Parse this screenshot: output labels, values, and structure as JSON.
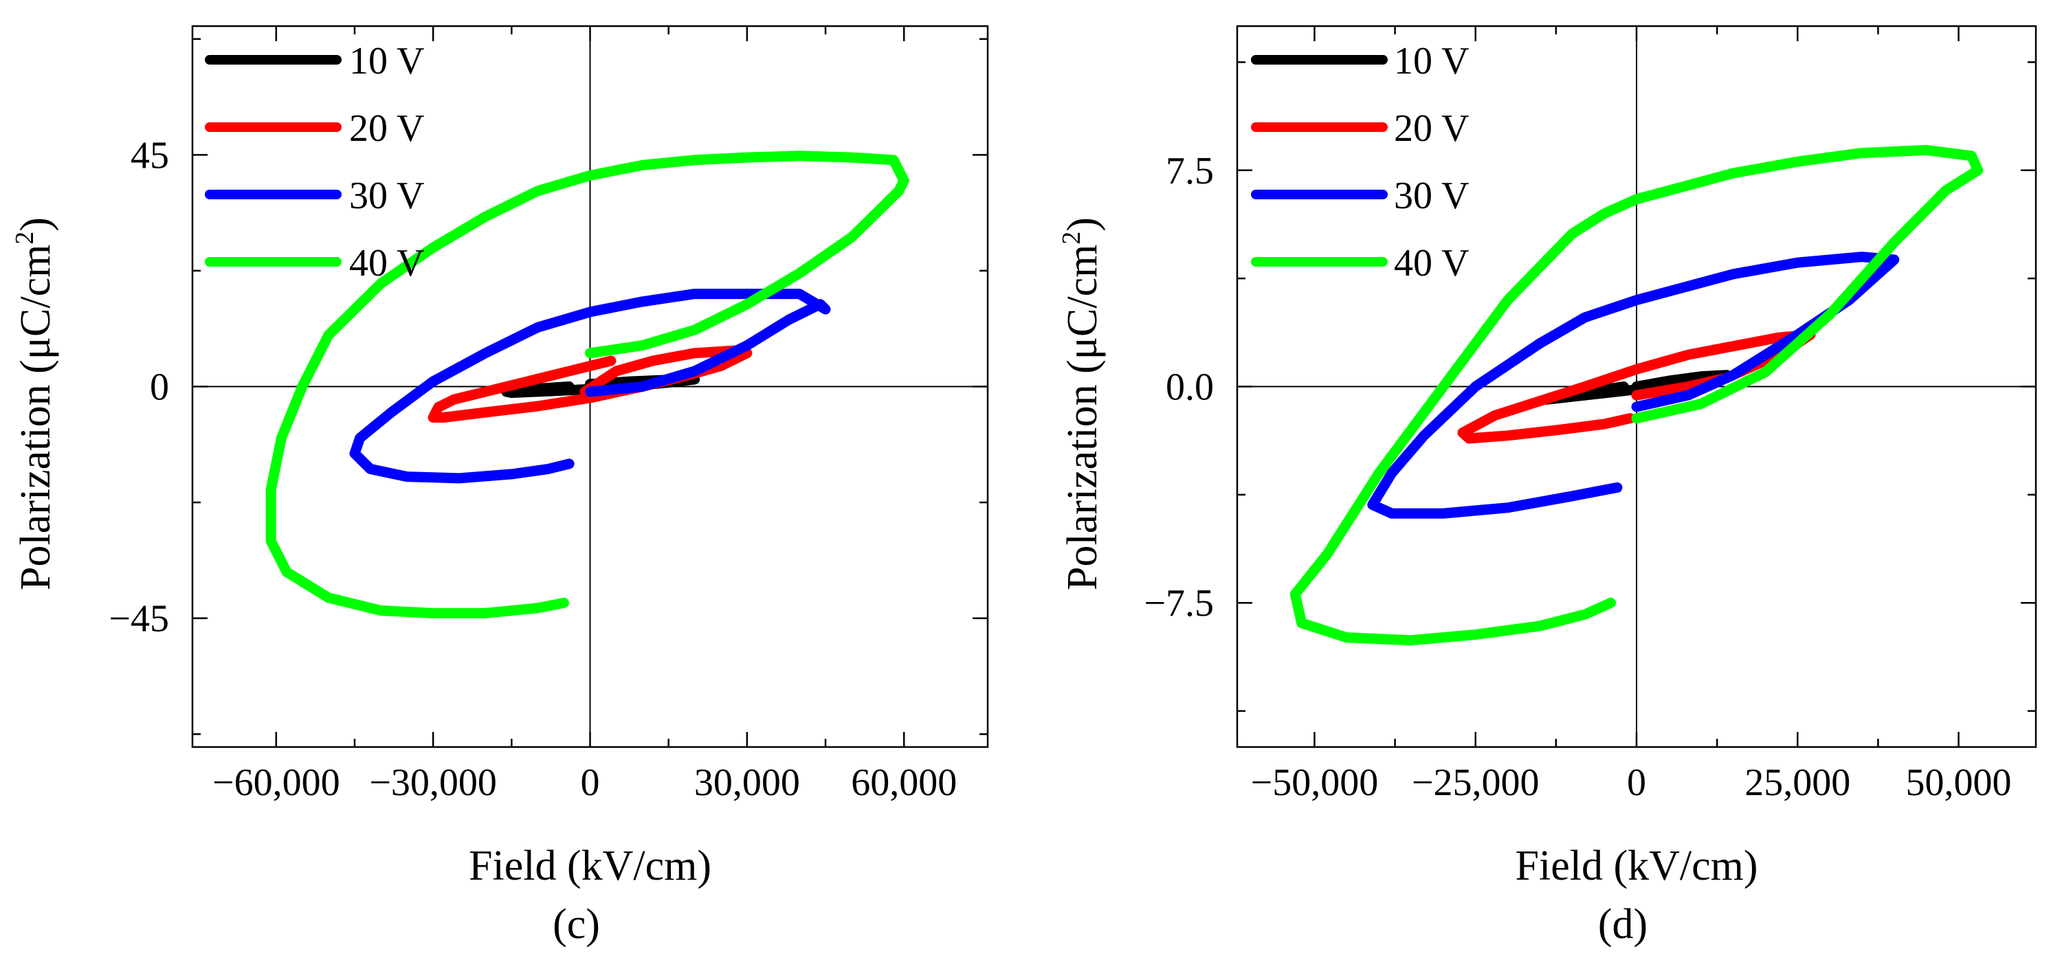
{
  "chart_data": [
    {
      "type": "line",
      "panel_label": "(c)",
      "xlabel": "Field (kV/cm)",
      "ylabel_main": "Polarization (μC/cm",
      "ylabel_sup": "2",
      "ylabel_close": ")",
      "xlim": [
        -76000,
        76000
      ],
      "ylim": [
        -70,
        70
      ],
      "xticks": [
        -60000,
        -30000,
        0,
        30000,
        60000
      ],
      "xtick_labels": [
        "−60,000",
        "−30,000",
        "0",
        "30,000",
        "60,000"
      ],
      "yticks": [
        -45,
        0,
        45
      ],
      "ytick_labels": [
        "−45",
        "0",
        "45"
      ],
      "minor_xticks": [
        -45000,
        -15000,
        15000,
        45000
      ],
      "minor_yticks": [
        -67.5,
        -22.5,
        22.5,
        67.5
      ],
      "legend_position": "top-left",
      "series": [
        {
          "name": "10 V",
          "color": "#000000",
          "points": [
            [
              0,
              0.5
            ],
            [
              8000,
              1
            ],
            [
              15000,
              1.3
            ],
            [
              20000,
              1.4
            ],
            [
              15000,
              0.8
            ],
            [
              8000,
              0.1
            ],
            [
              0,
              -0.5
            ],
            [
              -8000,
              -0.9
            ],
            [
              -15000,
              -1.2
            ],
            [
              -16000,
              -1
            ],
            [
              -10000,
              -0.4
            ],
            [
              -4000,
              0
            ]
          ]
        },
        {
          "name": "20 V",
          "color": "#ff0000",
          "points": [
            [
              -1000,
              -1
            ],
            [
              5000,
              3
            ],
            [
              12000,
              5
            ],
            [
              20000,
              6.5
            ],
            [
              28000,
              7
            ],
            [
              30000,
              6.5
            ],
            [
              25000,
              4
            ],
            [
              18000,
              2
            ],
            [
              10000,
              0
            ],
            [
              0,
              -2.2
            ],
            [
              -10000,
              -3.8
            ],
            [
              -20000,
              -5
            ],
            [
              -28000,
              -6
            ],
            [
              -30000,
              -6
            ],
            [
              -29000,
              -4
            ],
            [
              -26000,
              -2.5
            ],
            [
              -20000,
              -1
            ],
            [
              -10000,
              1.5
            ],
            [
              0,
              4
            ],
            [
              4000,
              5
            ]
          ]
        },
        {
          "name": "30 V",
          "color": "#0000ff",
          "points": [
            [
              0,
              -1
            ],
            [
              10000,
              0
            ],
            [
              20000,
              3
            ],
            [
              30000,
              8
            ],
            [
              38000,
              13
            ],
            [
              44000,
              16
            ],
            [
              45000,
              15
            ],
            [
              40000,
              18
            ],
            [
              30000,
              18
            ],
            [
              20000,
              18
            ],
            [
              10000,
              16.5
            ],
            [
              0,
              14.5
            ],
            [
              -10000,
              11.5
            ],
            [
              -20000,
              6.5
            ],
            [
              -30000,
              1
            ],
            [
              -38000,
              -5
            ],
            [
              -44000,
              -10
            ],
            [
              -45000,
              -13
            ],
            [
              -42000,
              -16
            ],
            [
              -35000,
              -17.5
            ],
            [
              -25000,
              -17.8
            ],
            [
              -15000,
              -17
            ],
            [
              -8000,
              -16
            ],
            [
              -4000,
              -15
            ]
          ]
        },
        {
          "name": "40 V",
          "color": "#00ff00",
          "points": [
            [
              0,
              6.5
            ],
            [
              10000,
              8
            ],
            [
              20000,
              11
            ],
            [
              30000,
              16
            ],
            [
              40000,
              22
            ],
            [
              50000,
              29
            ],
            [
              56000,
              35
            ],
            [
              59000,
              38
            ],
            [
              60000,
              40
            ],
            [
              58000,
              44
            ],
            [
              50000,
              44.5
            ],
            [
              40000,
              44.8
            ],
            [
              30000,
              44.5
            ],
            [
              20000,
              44
            ],
            [
              10000,
              43
            ],
            [
              0,
              41
            ],
            [
              -10000,
              38
            ],
            [
              -20000,
              33
            ],
            [
              -30000,
              27
            ],
            [
              -40000,
              20
            ],
            [
              -50000,
              10
            ],
            [
              -55000,
              0
            ],
            [
              -59000,
              -10
            ],
            [
              -61000,
              -20
            ],
            [
              -61000,
              -30
            ],
            [
              -58000,
              -36
            ],
            [
              -50000,
              -41
            ],
            [
              -40000,
              -43.5
            ],
            [
              -30000,
              -44
            ],
            [
              -20000,
              -44
            ],
            [
              -10000,
              -43
            ],
            [
              -5000,
              -42
            ]
          ]
        }
      ]
    },
    {
      "type": "line",
      "panel_label": "(d)",
      "xlabel": "Field (kV/cm)",
      "ylabel_main": "Polarization (μC/cm",
      "ylabel_sup": "2",
      "ylabel_close": ")",
      "xlim": [
        -62000,
        62000
      ],
      "ylim": [
        -12.5,
        12.5
      ],
      "xticks": [
        -50000,
        -25000,
        0,
        25000,
        50000
      ],
      "xtick_labels": [
        "−50,000",
        "−25,000",
        "0",
        "25,000",
        "50,000"
      ],
      "yticks": [
        -7.5,
        0,
        7.5
      ],
      "ytick_labels": [
        "−7.5",
        "0.0",
        "7.5"
      ],
      "minor_xticks": [
        -37500,
        -12500,
        12500,
        37500
      ],
      "minor_yticks": [
        -11.25,
        -3.75,
        3.75,
        11.25
      ],
      "legend_position": "top-left",
      "series": [
        {
          "name": "10 V",
          "color": "#000000",
          "points": [
            [
              0,
              0
            ],
            [
              5000,
              0.2
            ],
            [
              10000,
              0.35
            ],
            [
              14000,
              0.4
            ],
            [
              10000,
              0.2
            ],
            [
              4000,
              0
            ],
            [
              -4000,
              -0.2
            ],
            [
              -10000,
              -0.35
            ],
            [
              -14000,
              -0.45
            ],
            [
              -13000,
              -0.4
            ],
            [
              -8000,
              -0.2
            ],
            [
              -2000,
              0
            ]
          ]
        },
        {
          "name": "20 V",
          "color": "#ff0000",
          "points": [
            [
              0,
              -0.3
            ],
            [
              8000,
              0
            ],
            [
              14000,
              0.3
            ],
            [
              20000,
              0.9
            ],
            [
              25000,
              1.5
            ],
            [
              27000,
              1.8
            ],
            [
              22000,
              1.7
            ],
            [
              15000,
              1.4
            ],
            [
              8000,
              1.1
            ],
            [
              0,
              0.6
            ],
            [
              -8000,
              0
            ],
            [
              -15000,
              -0.5
            ],
            [
              -22000,
              -1
            ],
            [
              -27000,
              -1.6
            ],
            [
              -26000,
              -1.8
            ],
            [
              -20000,
              -1.7
            ],
            [
              -12000,
              -1.5
            ],
            [
              -5000,
              -1.3
            ],
            [
              -1000,
              -1.1
            ]
          ]
        },
        {
          "name": "30 V",
          "color": "#0000ff",
          "points": [
            [
              0,
              -0.7
            ],
            [
              8000,
              -0.3
            ],
            [
              15000,
              0.4
            ],
            [
              25000,
              1.8
            ],
            [
              33000,
              3
            ],
            [
              38000,
              4
            ],
            [
              40000,
              4.4
            ],
            [
              35000,
              4.5
            ],
            [
              25000,
              4.3
            ],
            [
              15000,
              3.9
            ],
            [
              5000,
              3.3
            ],
            [
              0,
              3
            ],
            [
              -8000,
              2.4
            ],
            [
              -15000,
              1.5
            ],
            [
              -25000,
              0
            ],
            [
              -33000,
              -1.7
            ],
            [
              -38000,
              -3
            ],
            [
              -41000,
              -4.1
            ],
            [
              -38000,
              -4.4
            ],
            [
              -30000,
              -4.4
            ],
            [
              -20000,
              -4.2
            ],
            [
              -10000,
              -3.8
            ],
            [
              -3000,
              -3.5
            ]
          ]
        },
        {
          "name": "40 V",
          "color": "#00ff00",
          "points": [
            [
              0,
              -1.1
            ],
            [
              10000,
              -0.6
            ],
            [
              20000,
              0.5
            ],
            [
              30000,
              2.5
            ],
            [
              40000,
              5
            ],
            [
              48000,
              6.8
            ],
            [
              53000,
              7.5
            ],
            [
              52000,
              8
            ],
            [
              45000,
              8.2
            ],
            [
              35000,
              8.1
            ],
            [
              25000,
              7.8
            ],
            [
              15000,
              7.4
            ],
            [
              5000,
              6.8
            ],
            [
              0,
              6.5
            ],
            [
              -5000,
              6
            ],
            [
              -10000,
              5.3
            ],
            [
              -20000,
              3
            ],
            [
              -30000,
              0
            ],
            [
              -40000,
              -3
            ],
            [
              -48000,
              -5.8
            ],
            [
              -53000,
              -7.2
            ],
            [
              -52000,
              -8.2
            ],
            [
              -45000,
              -8.7
            ],
            [
              -35000,
              -8.8
            ],
            [
              -25000,
              -8.6
            ],
            [
              -15000,
              -8.3
            ],
            [
              -8000,
              -7.9
            ],
            [
              -4000,
              -7.5
            ]
          ]
        }
      ]
    }
  ]
}
